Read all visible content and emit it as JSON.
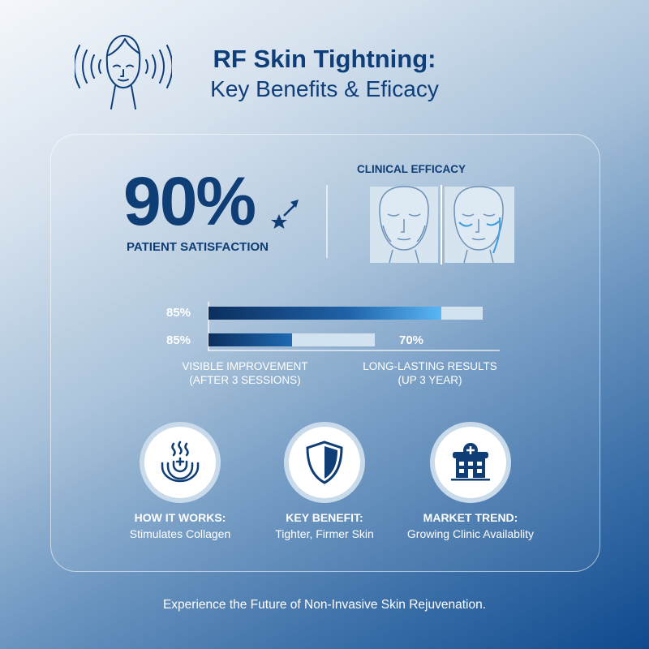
{
  "header": {
    "icon": "face-radio-waves-icon",
    "title": "RF Skin Tightning:",
    "subtitle": "Key Benefits & Eficacy"
  },
  "satisfaction": {
    "value": "90%",
    "label": "PATIENT SATISFACTION",
    "icon": "star-arrow-icon"
  },
  "clinical": {
    "title": "CLINICAL EFFICACY",
    "images": [
      "face-before-icon",
      "face-after-icon"
    ]
  },
  "bars": [
    {
      "label": "85%",
      "percent": 85,
      "color_start": "#0b2f5e",
      "color_end": "#5ab6f5"
    },
    {
      "label": "85%",
      "percent": 50,
      "right_label": "70%",
      "color_start": "#0b2f5e",
      "color_end": "#1f6ab3"
    }
  ],
  "bar_captions": {
    "left": {
      "line1": "VISIBLE IMPROVEMENT",
      "line2": "(AFTER 3 SESSIONS)"
    },
    "right": {
      "line1": "LONG-LASTING RESULTS",
      "line2": "(UP 3 YEAR)"
    }
  },
  "features": [
    {
      "icon": "heat-waves-icon",
      "title": "HOW IT WORKS:",
      "subtitle": "Stimulates Collagen"
    },
    {
      "icon": "shield-icon",
      "title": "KEY BENEFIT:",
      "subtitle": "Tighter, Firmer Skin"
    },
    {
      "icon": "hospital-icon",
      "title": "MARKET TREND:",
      "subtitle": "Growing Clinic Availablity"
    }
  ],
  "footer": "Experience the Future of Non-Invasive Skin Rejuvenation.",
  "colors": {
    "primary": "#0f3d75",
    "accent": "#5ab6f5"
  }
}
